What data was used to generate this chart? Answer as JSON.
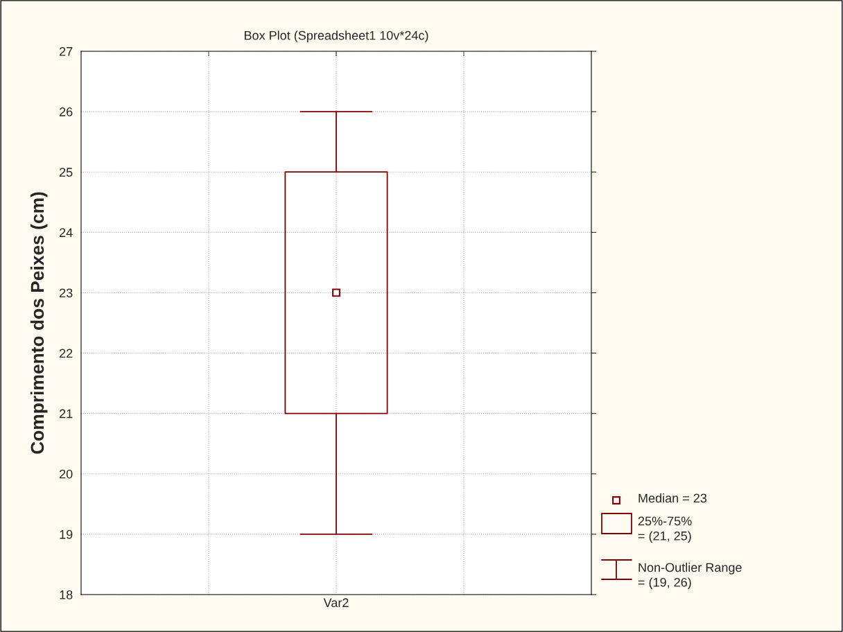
{
  "chart_data": {
    "type": "box",
    "title": "Box Plot (Spreadsheet1 10v*24c)",
    "ylabel": "Comprimento dos Peixes (cm)",
    "categories": [
      "Var2"
    ],
    "series": [
      {
        "color": "#800000",
        "boxes": [
          {
            "low": 19,
            "q1": 21,
            "median": 23,
            "q3": 25,
            "high": 26
          }
        ]
      }
    ],
    "ylim": [
      18,
      27
    ],
    "yticks": [
      18,
      19,
      20,
      21,
      22,
      23,
      24,
      25,
      26,
      27
    ],
    "grid": true,
    "marker": "square",
    "annotations": [
      "Median = 23",
      "25%-75%\n= (21, 25)",
      "Non-Outlier Range\n= (19, 26)"
    ]
  }
}
